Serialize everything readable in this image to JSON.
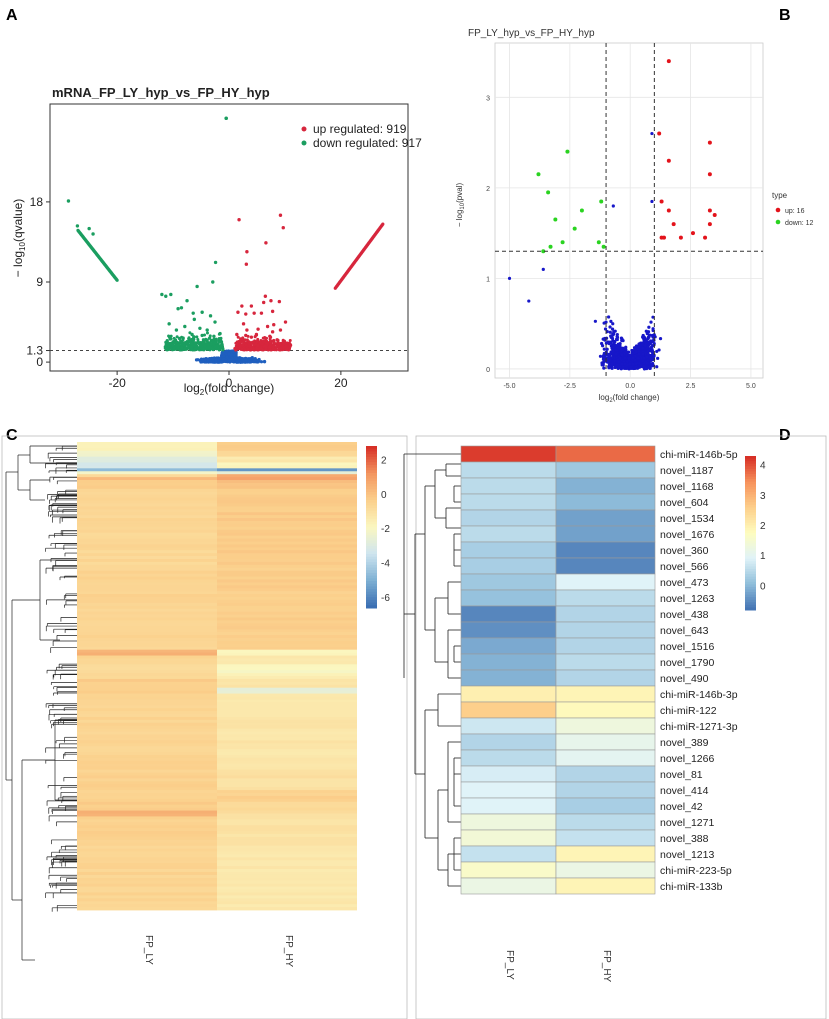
{
  "panel_labels": [
    "A",
    "B",
    "C",
    "D"
  ],
  "chart_data": [
    {
      "panel": "A",
      "type": "scatter",
      "title": "mRNA_FP_LY_hyp_vs_FP_HY_hyp",
      "xlabel_main": "log",
      "xlabel_sub": "2",
      "xlabel_rest": "(fold change)",
      "ylabel_pre": "− log",
      "ylabel_sub": "10",
      "ylabel_rest": "(qvalue)",
      "xticks": [
        "-20",
        "0",
        "20"
      ],
      "yticks": [
        "0",
        "1.3",
        "9",
        "18"
      ],
      "xlim": [
        -32,
        32
      ],
      "ylim": [
        -1,
        29
      ],
      "threshold": 1.3,
      "legend": [
        {
          "label": "up regulated: 919",
          "color": "#d7263d"
        },
        {
          "label": "down regulated: 917",
          "color": "#1b9e60"
        }
      ],
      "colors": {
        "up": "#d7263d",
        "down": "#1b9e60",
        "ns": "#1f5fbf"
      },
      "up_line": {
        "x": [
          19,
          27.5
        ],
        "y": [
          8.3,
          15.5
        ]
      },
      "down_line": {
        "x": [
          -27,
          -20
        ],
        "y": [
          14.8,
          9.2
        ]
      },
      "up_points": [
        [
          1.8,
          16
        ],
        [
          9.2,
          16.5
        ],
        [
          9.7,
          15.1
        ],
        [
          6.6,
          13.4
        ],
        [
          3.1,
          11
        ],
        [
          3.2,
          12.4
        ],
        [
          6.5,
          7.4
        ],
        [
          6.2,
          6.7
        ],
        [
          7.5,
          6.9
        ],
        [
          9,
          6.8
        ],
        [
          2.3,
          6.3
        ],
        [
          4,
          6.3
        ],
        [
          3,
          5.4
        ],
        [
          4.5,
          5.5
        ],
        [
          7.8,
          5.7
        ],
        [
          5.8,
          5.5
        ],
        [
          1.6,
          5.6
        ],
        [
          10.1,
          4.5
        ],
        [
          8,
          4.2
        ],
        [
          6.9,
          4
        ],
        [
          2.6,
          4.3
        ],
        [
          3.2,
          3.6
        ],
        [
          5.2,
          3.7
        ],
        [
          9.2,
          3.6
        ],
        [
          4,
          2.8
        ],
        [
          2.1,
          2.6
        ],
        [
          7.3,
          2.9
        ],
        [
          8.6,
          2.5
        ],
        [
          1.4,
          3.1
        ],
        [
          5.6,
          2.2
        ],
        [
          3.6,
          2
        ],
        [
          6.2,
          2.3
        ],
        [
          2.4,
          1.9
        ],
        [
          9.8,
          2.1
        ],
        [
          11,
          1.9
        ],
        [
          4.9,
          3.1
        ],
        [
          7.8,
          3.4
        ],
        [
          3,
          3
        ],
        [
          6.5,
          1.8
        ],
        [
          1.8,
          2.3
        ]
      ],
      "down_points": [
        [
          -28.7,
          18.1
        ],
        [
          -27.1,
          15.3
        ],
        [
          -25,
          15
        ],
        [
          -24.3,
          14.4
        ],
        [
          -2.4,
          11.2
        ],
        [
          -2.9,
          9
        ],
        [
          -5.7,
          8.5
        ],
        [
          -12,
          7.6
        ],
        [
          -10.4,
          7.6
        ],
        [
          -7.5,
          6.9
        ],
        [
          -11.3,
          7.4
        ],
        [
          -9.1,
          6
        ],
        [
          -6.4,
          5.5
        ],
        [
          -8.5,
          6.1
        ],
        [
          -3.3,
          5.2
        ],
        [
          -4.8,
          5.6
        ],
        [
          -6.2,
          4.8
        ],
        [
          -10.7,
          4.3
        ],
        [
          -7.9,
          4
        ],
        [
          -2.5,
          4.5
        ],
        [
          -3.9,
          3.6
        ],
        [
          -5.2,
          3.8
        ],
        [
          -9.4,
          3.6
        ],
        [
          -6.6,
          3.1
        ],
        [
          -1.6,
          3.2
        ],
        [
          -8.2,
          2.7
        ],
        [
          -4.4,
          2.4
        ],
        [
          -2.7,
          2.9
        ],
        [
          -10.5,
          2.6
        ],
        [
          -5.9,
          2.1
        ],
        [
          -7.1,
          2.4
        ],
        [
          -3.2,
          2
        ],
        [
          -1.8,
          2.4
        ],
        [
          -9,
          1.9
        ],
        [
          -4.8,
          3
        ],
        [
          -6.3,
          2.8
        ],
        [
          -2.2,
          1.8
        ],
        [
          -11.2,
          2
        ]
      ],
      "ns_extra": [
        [
          -0.5,
          27.4
        ]
      ]
    },
    {
      "panel": "B",
      "type": "scatter",
      "title": "FP_LY_hyp_vs_FP_HY_hyp",
      "xlabel_main": "log",
      "xlabel_sub": "2",
      "xlabel_rest": "(fold change)",
      "ylabel_pre": "− log",
      "ylabel_sub": "10",
      "ylabel_rest": "(pval)",
      "xticks": [
        "-5.0",
        "-2.5",
        "0.0",
        "2.5",
        "5.0"
      ],
      "yticks": [
        "0",
        "1",
        "2",
        "3"
      ],
      "xlim": [
        -5.6,
        5.5
      ],
      "ylim": [
        -0.1,
        3.6
      ],
      "vlines": [
        -1,
        1
      ],
      "hline": 1.3,
      "legend_title": "type",
      "legend": [
        {
          "label": "up: 16",
          "color": "#e3131b"
        },
        {
          "label": "down: 12",
          "color": "#2ad320"
        }
      ],
      "colors": {
        "up": "#e3131b",
        "down": "#2ad320",
        "ns": "#1717c9"
      },
      "up_points": [
        [
          1.6,
          3.4
        ],
        [
          1.2,
          2.6
        ],
        [
          3.3,
          2.5
        ],
        [
          1.6,
          2.3
        ],
        [
          3.3,
          2.15
        ],
        [
          1.3,
          1.85
        ],
        [
          1.6,
          1.75
        ],
        [
          1.8,
          1.6
        ],
        [
          3.3,
          1.75
        ],
        [
          3.5,
          1.7
        ],
        [
          3.3,
          1.6
        ],
        [
          1.3,
          1.45
        ],
        [
          1.4,
          1.45
        ],
        [
          2.1,
          1.45
        ],
        [
          2.6,
          1.5
        ],
        [
          3.1,
          1.45
        ]
      ],
      "down_points": [
        [
          -2.6,
          2.4
        ],
        [
          -3.8,
          2.15
        ],
        [
          -3.4,
          1.95
        ],
        [
          -1.2,
          1.85
        ],
        [
          -2,
          1.75
        ],
        [
          -3.1,
          1.65
        ],
        [
          -2.3,
          1.55
        ],
        [
          -2.8,
          1.4
        ],
        [
          -3.3,
          1.35
        ],
        [
          -1.1,
          1.35
        ],
        [
          -1.3,
          1.4
        ],
        [
          -3.6,
          1.3
        ]
      ],
      "ns_extra": [
        [
          -5,
          1
        ],
        [
          -4.2,
          0.75
        ],
        [
          -3.6,
          1.1
        ],
        [
          -0.7,
          1.8
        ],
        [
          0.9,
          1.85
        ],
        [
          0.9,
          2.6
        ]
      ]
    },
    {
      "panel": "C",
      "type": "heatmap",
      "columns": [
        "FP_LY",
        "FP_HY"
      ],
      "colorbar_ticks": [
        "2",
        "0",
        "-2",
        "-4",
        "-6"
      ],
      "colorbar_range": [
        -6.6,
        2.8
      ],
      "colorscale": [
        "#3b6fb3",
        "#7fb1d4",
        "#cfe5ef",
        "#fbf7c0",
        "#fbd08c",
        "#f39660",
        "#d73027"
      ],
      "bands": [
        [
          0.0,
          -1.6,
          -0.2
        ],
        [
          0.016,
          -2.2,
          -0.8
        ],
        [
          0.03,
          -2.8,
          -1.3
        ],
        [
          0.042,
          -3.4,
          -1.8
        ],
        [
          0.051,
          -4.8,
          -5.6
        ],
        [
          0.057,
          -2.0,
          -2.6
        ],
        [
          0.064,
          -0.7,
          0.6
        ],
        [
          0.072,
          0.3,
          0.9
        ],
        [
          0.08,
          -0.3,
          0.1
        ],
        [
          0.1,
          -0.6,
          -0.2
        ],
        [
          0.26,
          -0.5,
          -0.3
        ],
        [
          0.44,
          0.4,
          -1.9
        ],
        [
          0.452,
          -0.6,
          -1.3
        ],
        [
          0.47,
          -0.7,
          -2.0
        ],
        [
          0.49,
          -0.5,
          -1.5
        ],
        [
          0.505,
          -0.3,
          -1.1
        ],
        [
          0.52,
          -0.4,
          -2.6
        ],
        [
          0.532,
          -0.5,
          -1.4
        ],
        [
          0.56,
          -0.5,
          -1.2
        ],
        [
          0.7,
          -0.4,
          -1.0
        ],
        [
          0.74,
          -0.5,
          -0.4
        ],
        [
          0.765,
          -0.3,
          -0.7
        ],
        [
          0.785,
          0.5,
          -0.9
        ],
        [
          0.795,
          -0.4,
          -1.1
        ],
        [
          0.86,
          -0.5,
          -1.3
        ],
        [
          1.0,
          -0.5,
          -1.3
        ]
      ]
    },
    {
      "panel": "D",
      "type": "heatmap",
      "columns": [
        "FP_LY",
        "FP_HY"
      ],
      "colorbar_ticks": [
        "4",
        "3",
        "2",
        "1",
        "0"
      ],
      "colorbar_range": [
        -0.8,
        4.3
      ],
      "colorscale": [
        "#4575b4",
        "#91bfdb",
        "#e0f3f8",
        "#fefcbf",
        "#fdcf8b",
        "#f7935c",
        "#d73027"
      ],
      "rows": [
        {
          "label": "chi-miR-146b-5p",
          "values": [
            4.2,
            3.8
          ]
        },
        {
          "label": "novel_1187",
          "values": [
            0.5,
            0.2
          ]
        },
        {
          "label": "novel_1168",
          "values": [
            0.5,
            -0.1
          ]
        },
        {
          "label": "novel_604",
          "values": [
            0.5,
            0.0
          ]
        },
        {
          "label": "novel_1534",
          "values": [
            0.4,
            -0.3
          ]
        },
        {
          "label": "novel_1676",
          "values": [
            0.5,
            -0.3
          ]
        },
        {
          "label": "novel_360",
          "values": [
            0.3,
            -0.6
          ]
        },
        {
          "label": "novel_566",
          "values": [
            0.3,
            -0.6
          ]
        },
        {
          "label": "novel_473",
          "values": [
            0.2,
            0.9
          ]
        },
        {
          "label": "novel_1263",
          "values": [
            0.1,
            0.5
          ]
        },
        {
          "label": "novel_438",
          "values": [
            -0.6,
            0.4
          ]
        },
        {
          "label": "novel_643",
          "values": [
            -0.5,
            0.4
          ]
        },
        {
          "label": "novel_1516",
          "values": [
            -0.2,
            0.4
          ]
        },
        {
          "label": "novel_1790",
          "values": [
            -0.1,
            0.5
          ]
        },
        {
          "label": "novel_490",
          "values": [
            -0.1,
            0.4
          ]
        },
        {
          "label": "chi-miR-146b-3p",
          "values": [
            2.0,
            1.9
          ]
        },
        {
          "label": "chi-miR-122",
          "values": [
            2.6,
            1.8
          ]
        },
        {
          "label": "chi-miR-1271-3p",
          "values": [
            0.7,
            1.3
          ]
        },
        {
          "label": "novel_389",
          "values": [
            0.4,
            1.1
          ]
        },
        {
          "label": "novel_1266",
          "values": [
            0.5,
            1.0
          ]
        },
        {
          "label": "novel_81",
          "values": [
            0.8,
            0.4
          ]
        },
        {
          "label": "novel_414",
          "values": [
            0.9,
            0.4
          ]
        },
        {
          "label": "novel_42",
          "values": [
            0.9,
            0.3
          ]
        },
        {
          "label": "novel_1271",
          "values": [
            1.3,
            0.5
          ]
        },
        {
          "label": "novel_388",
          "values": [
            1.4,
            0.6
          ]
        },
        {
          "label": "novel_1213",
          "values": [
            0.6,
            1.9
          ]
        },
        {
          "label": "chi-miR-223-5p",
          "values": [
            1.6,
            1.2
          ]
        },
        {
          "label": "chi-miR-133b",
          "values": [
            1.2,
            1.9
          ]
        }
      ]
    }
  ]
}
